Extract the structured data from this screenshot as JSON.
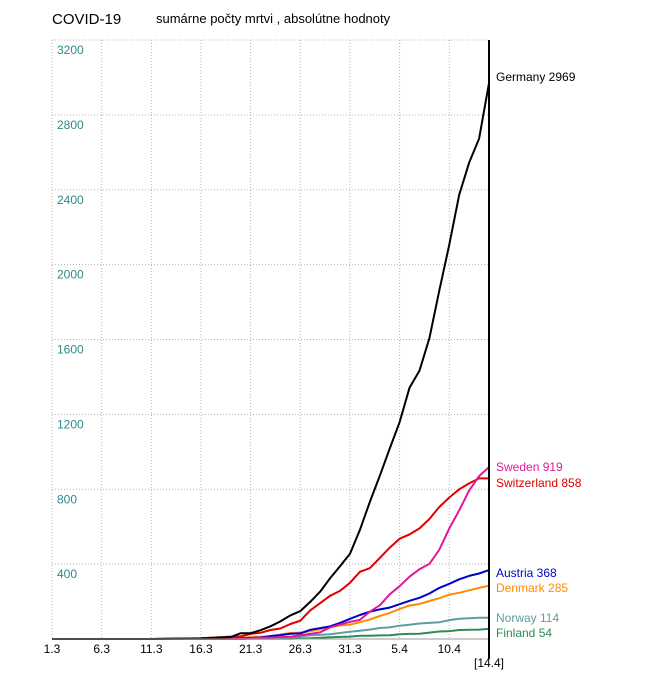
{
  "chart_data": {
    "type": "line",
    "title": "COVID-19",
    "subtitle": "sumárne počty mrtvi , absolútne hodnoty",
    "ylim": [
      0,
      3200
    ],
    "yticks": [
      400,
      800,
      1200,
      1600,
      2000,
      2400,
      2800,
      3200
    ],
    "ytick_labels": [
      "400",
      "800",
      "1200",
      "1600",
      "2000",
      "2400",
      "2800",
      "3200"
    ],
    "xlim": [
      0,
      44
    ],
    "xticks": [
      0,
      5,
      10,
      15,
      20,
      25,
      30,
      35,
      40
    ],
    "xtick_labels": [
      "1.3",
      "6.3",
      "11.3",
      "16.3",
      "21.3",
      "26.3",
      "31.3",
      "5.4",
      "10.4"
    ],
    "current_date_label": "[14.4]",
    "grid": true,
    "legend": "right end labels",
    "series": [
      {
        "name": "Germany",
        "last_label": "2969",
        "color": "#000000",
        "x": [
          0,
          5,
          10,
          13,
          15,
          18,
          19,
          20,
          21,
          22,
          23,
          24,
          25,
          26,
          27,
          28,
          29,
          30,
          31,
          32,
          33,
          34,
          35,
          36,
          37,
          38,
          39,
          40,
          41,
          42,
          43,
          44
        ],
        "y": [
          0,
          0,
          0,
          2,
          3,
          10,
          31,
          31,
          47,
          68,
          94,
          126,
          149,
          198,
          253,
          325,
          389,
          455,
          583,
          732,
          872,
          1017,
          1158,
          1342,
          1434,
          1607,
          1861,
          2107,
          2373,
          2544,
          2673,
          2969
        ]
      },
      {
        "name": "Sweden",
        "last_label": "919",
        "color": "#e0189b",
        "x": [
          0,
          5,
          10,
          13,
          15,
          18,
          19,
          20,
          21,
          22,
          23,
          24,
          25,
          26,
          27,
          28,
          29,
          30,
          31,
          32,
          33,
          34,
          35,
          36,
          37,
          38,
          39,
          40,
          41,
          42,
          43,
          44
        ],
        "y": [
          0,
          0,
          0,
          0,
          0,
          1,
          1,
          3,
          7,
          8,
          10,
          12,
          20,
          27,
          36,
          62,
          77,
          92,
          102,
          146,
          180,
          239,
          282,
          333,
          373,
          401,
          477,
          591,
          687,
          793,
          870,
          919
        ]
      },
      {
        "name": "Switzerland",
        "last_label": "858",
        "color": "#e00000",
        "x": [
          0,
          5,
          10,
          13,
          15,
          18,
          19,
          20,
          21,
          22,
          23,
          24,
          25,
          26,
          27,
          28,
          29,
          30,
          31,
          32,
          33,
          34,
          35,
          36,
          37,
          38,
          39,
          40,
          41,
          42,
          43,
          44
        ],
        "y": [
          0,
          0,
          0,
          1,
          4,
          13,
          14,
          27,
          33,
          48,
          56,
          80,
          98,
          153,
          192,
          231,
          257,
          300,
          359,
          378,
          433,
          488,
          536,
          559,
          591,
          641,
          705,
          756,
          800,
          831,
          858,
          858
        ]
      },
      {
        "name": "Austria",
        "last_label": "368",
        "color": "#0000cc",
        "x": [
          0,
          5,
          10,
          13,
          15,
          18,
          19,
          20,
          21,
          22,
          23,
          24,
          25,
          26,
          27,
          28,
          29,
          30,
          31,
          32,
          33,
          34,
          35,
          36,
          37,
          38,
          39,
          40,
          41,
          42,
          43,
          44
        ],
        "y": [
          0,
          0,
          0,
          1,
          1,
          3,
          4,
          6,
          8,
          16,
          21,
          28,
          30,
          49,
          58,
          68,
          86,
          108,
          128,
          146,
          158,
          168,
          186,
          204,
          220,
          243,
          273,
          295,
          319,
          337,
          350,
          368
        ]
      },
      {
        "name": "Denmark",
        "last_label": "285",
        "color": "#ff8c00",
        "x": [
          0,
          5,
          10,
          13,
          15,
          18,
          19,
          20,
          21,
          22,
          23,
          24,
          25,
          26,
          27,
          28,
          29,
          30,
          31,
          32,
          33,
          34,
          35,
          36,
          37,
          38,
          39,
          40,
          41,
          42,
          43,
          44
        ],
        "y": [
          0,
          0,
          0,
          1,
          2,
          4,
          6,
          9,
          13,
          13,
          24,
          32,
          34,
          41,
          52,
          65,
          72,
          77,
          90,
          104,
          123,
          139,
          161,
          179,
          187,
          203,
          218,
          237,
          247,
          260,
          273,
          285
        ]
      },
      {
        "name": "Norway",
        "last_label": "114",
        "color": "#5f9ea0",
        "x": [
          0,
          5,
          10,
          13,
          15,
          18,
          19,
          20,
          21,
          22,
          23,
          24,
          25,
          26,
          27,
          28,
          29,
          30,
          31,
          32,
          33,
          34,
          35,
          36,
          37,
          38,
          39,
          40,
          41,
          42,
          43,
          44
        ],
        "y": [
          0,
          0,
          0,
          1,
          2,
          3,
          3,
          3,
          6,
          7,
          7,
          10,
          14,
          19,
          23,
          25,
          32,
          39,
          44,
          50,
          59,
          62,
          71,
          76,
          83,
          86,
          89,
          101,
          108,
          111,
          113,
          114
        ]
      },
      {
        "name": "Finland",
        "last_label": "54",
        "color": "#2e8b57",
        "x": [
          0,
          5,
          10,
          13,
          15,
          18,
          19,
          20,
          21,
          22,
          23,
          24,
          25,
          26,
          27,
          28,
          29,
          30,
          31,
          32,
          33,
          34,
          35,
          36,
          37,
          38,
          39,
          40,
          41,
          42,
          43,
          44
        ],
        "y": [
          0,
          0,
          0,
          0,
          0,
          0,
          0,
          1,
          1,
          1,
          1,
          1,
          3,
          4,
          7,
          9,
          11,
          13,
          17,
          17,
          19,
          20,
          25,
          27,
          28,
          34,
          40,
          42,
          48,
          49,
          50,
          54
        ]
      }
    ]
  }
}
